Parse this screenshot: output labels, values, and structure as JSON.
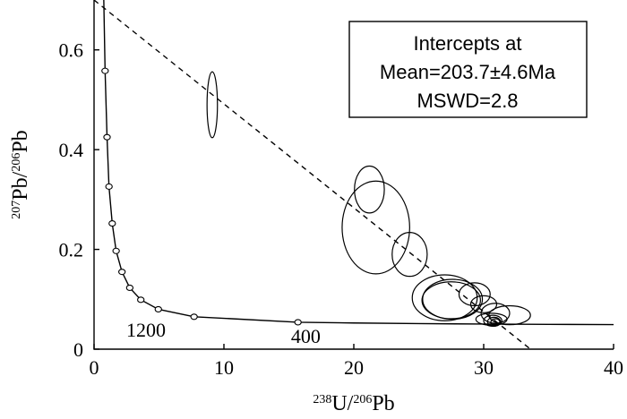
{
  "chart_data": {
    "type": "scatter",
    "title": "",
    "xlabel": {
      "sup": "238",
      "base": "U/",
      "sup2": "206",
      "end": "Pb"
    },
    "ylabel": {
      "sup": "207",
      "base": "Pb/",
      "sup2": "206",
      "end": "Pb"
    },
    "xlim": [
      0,
      40
    ],
    "ylim": [
      0,
      0.7
    ],
    "xticks": [
      0,
      10,
      20,
      30,
      40
    ],
    "yticks": [
      0,
      0.2,
      0.4,
      0.6
    ],
    "xtick_labels": [
      "0",
      "10",
      "20",
      "30",
      "40"
    ],
    "ytick_labels": [
      "0",
      "0.2",
      "0.4",
      "0.6"
    ],
    "grid": false,
    "annotation_box": {
      "lines": [
        "Intercepts at",
        "Mean=203.7±4.6Ma",
        "MSWD=2.8"
      ],
      "placement": "top-right"
    },
    "age_labels": [
      {
        "text": "1200",
        "x": 4.0,
        "y": 0.025
      },
      {
        "text": "400",
        "x": 16.3,
        "y": 0.013
      }
    ],
    "concordia_markers": [
      {
        "x": 0.85,
        "y": 0.558
      },
      {
        "x": 1.0,
        "y": 0.425
      },
      {
        "x": 1.15,
        "y": 0.326
      },
      {
        "x": 1.4,
        "y": 0.252
      },
      {
        "x": 1.7,
        "y": 0.197
      },
      {
        "x": 2.15,
        "y": 0.155
      },
      {
        "x": 2.75,
        "y": 0.123
      },
      {
        "x": 3.6,
        "y": 0.099
      },
      {
        "x": 4.95,
        "y": 0.08
      },
      {
        "x": 7.7,
        "y": 0.065
      },
      {
        "x": 15.7,
        "y": 0.054
      }
    ],
    "discordia": {
      "y_intercept": 0.7,
      "x_intercept": 33.6
    },
    "ellipses": [
      {
        "cx": 9.1,
        "cy": 0.49,
        "rx": 0.4,
        "ry": 0.066
      },
      {
        "cx": 21.2,
        "cy": 0.32,
        "rx": 1.15,
        "ry": 0.047
      },
      {
        "cx": 21.7,
        "cy": 0.244,
        "rx": 2.6,
        "ry": 0.093
      },
      {
        "cx": 24.3,
        "cy": 0.19,
        "rx": 1.35,
        "ry": 0.044
      },
      {
        "cx": 27.0,
        "cy": 0.103,
        "rx": 2.5,
        "ry": 0.046
      },
      {
        "cx": 27.6,
        "cy": 0.1,
        "rx": 2.3,
        "ry": 0.04
      },
      {
        "cx": 27.5,
        "cy": 0.098,
        "rx": 2.25,
        "ry": 0.037
      },
      {
        "cx": 29.3,
        "cy": 0.11,
        "rx": 1.2,
        "ry": 0.023
      },
      {
        "cx": 30.0,
        "cy": 0.09,
        "rx": 1.0,
        "ry": 0.017
      },
      {
        "cx": 30.9,
        "cy": 0.072,
        "rx": 1.1,
        "ry": 0.02
      },
      {
        "cx": 32.0,
        "cy": 0.068,
        "rx": 1.6,
        "ry": 0.019
      },
      {
        "cx": 30.6,
        "cy": 0.06,
        "rx": 1.2,
        "ry": 0.012
      },
      {
        "cx": 30.7,
        "cy": 0.057,
        "rx": 0.7,
        "ry": 0.011
      },
      {
        "cx": 30.8,
        "cy": 0.055,
        "rx": 0.5,
        "ry": 0.009
      },
      {
        "cx": 30.9,
        "cy": 0.054,
        "rx": 0.35,
        "ry": 0.007
      }
    ]
  }
}
